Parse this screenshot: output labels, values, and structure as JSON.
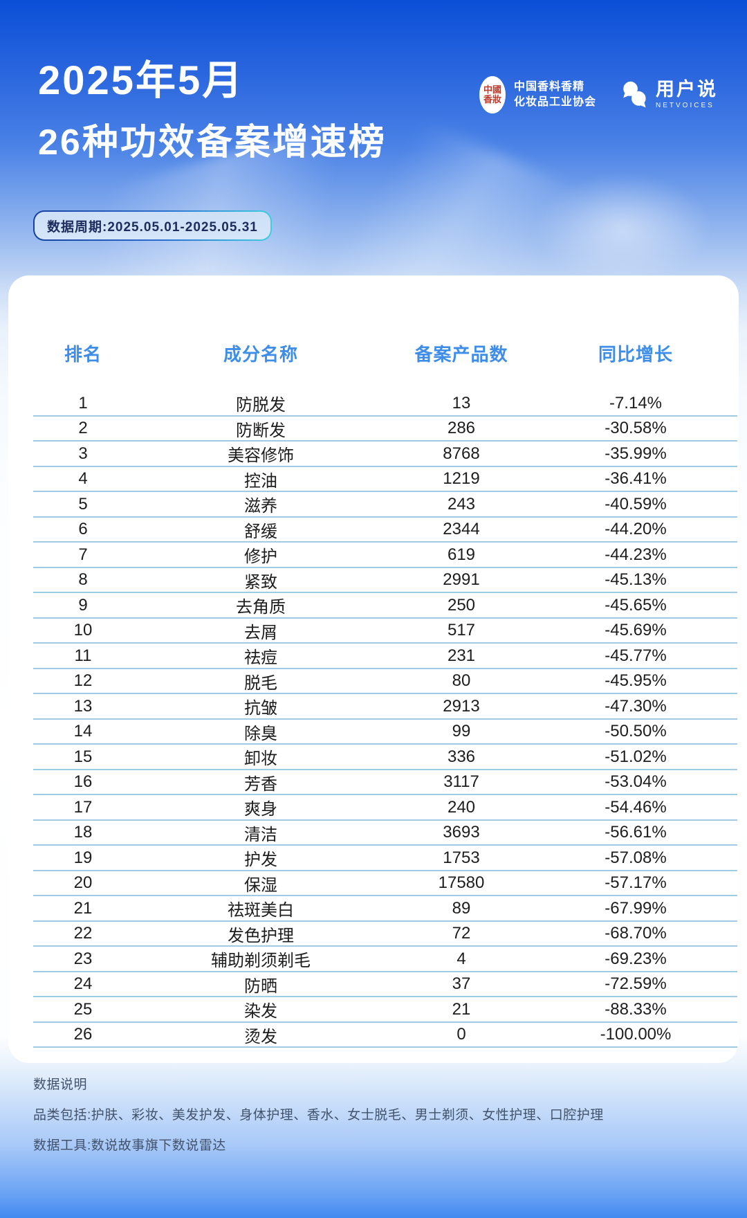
{
  "header": {
    "title_line1": "2025年5月",
    "title_line2": "26种功效备案增速榜",
    "association": {
      "seal_line1": "中國",
      "seal_line2": "香妝",
      "name_line1": "中国香料香精",
      "name_line2": "化妆品工业协会"
    },
    "netvoices": {
      "name": "用户说",
      "subtitle": "NETVOICES",
      "icon": "netvoices-bubbles-icon"
    },
    "period_badge": "数据周期:2025.05.01-2025.05.31"
  },
  "chart_data": {
    "type": "table",
    "title": "2025年5月 26种功效备案增速榜",
    "data_period": "2025.05.01-2025.05.31",
    "columns": [
      "排名",
      "成分名称",
      "备案产品数",
      "同比增长"
    ],
    "rows": [
      [
        "1",
        "防脱发",
        "13",
        "-7.14%"
      ],
      [
        "2",
        "防断发",
        "286",
        "-30.58%"
      ],
      [
        "3",
        "美容修饰",
        "8768",
        "-35.99%"
      ],
      [
        "4",
        "控油",
        "1219",
        "-36.41%"
      ],
      [
        "5",
        "滋养",
        "243",
        "-40.59%"
      ],
      [
        "6",
        "舒缓",
        "2344",
        "-44.20%"
      ],
      [
        "7",
        "修护",
        "619",
        "-44.23%"
      ],
      [
        "8",
        "紧致",
        "2991",
        "-45.13%"
      ],
      [
        "9",
        "去角质",
        "250",
        "-45.65%"
      ],
      [
        "10",
        "去屑",
        "517",
        "-45.69%"
      ],
      [
        "11",
        "祛痘",
        "231",
        "-45.77%"
      ],
      [
        "12",
        "脱毛",
        "80",
        "-45.95%"
      ],
      [
        "13",
        "抗皱",
        "2913",
        "-47.30%"
      ],
      [
        "14",
        "除臭",
        "99",
        "-50.50%"
      ],
      [
        "15",
        "卸妆",
        "336",
        "-51.02%"
      ],
      [
        "16",
        "芳香",
        "3117",
        "-53.04%"
      ],
      [
        "17",
        "爽身",
        "240",
        "-54.46%"
      ],
      [
        "18",
        "清洁",
        "3693",
        "-56.61%"
      ],
      [
        "19",
        "护发",
        "1753",
        "-57.08%"
      ],
      [
        "20",
        "保湿",
        "17580",
        "-57.17%"
      ],
      [
        "21",
        "祛斑美白",
        "89",
        "-67.99%"
      ],
      [
        "22",
        "发色护理",
        "72",
        "-68.70%"
      ],
      [
        "23",
        "辅助剃须剃毛",
        "4",
        "-69.23%"
      ],
      [
        "24",
        "防晒",
        "37",
        "-72.59%"
      ],
      [
        "25",
        "染发",
        "21",
        "-88.33%"
      ],
      [
        "26",
        "烫发",
        "0",
        "-100.00%"
      ]
    ]
  },
  "footer": {
    "title": "数据说明",
    "categories": "品类包括:护肤、彩妆、美发护发、身体护理、香水、女士脱毛、男士剃须、女性护理、口腔护理",
    "tool": "数据工具:数说故事旗下数说雷达"
  },
  "colors": {
    "background_top_blue": "#0b4fd7",
    "background_bottom_blue": "#4289ef",
    "table_header_blue": "#3e8de8",
    "row_divider_blue": "#9fcbe5",
    "badge_border_start": "#17419f",
    "badge_border_end": "#3ecfe2",
    "badge_text_navy": "#1c2c5c",
    "seal_red": "#c0392b",
    "footer_text": "#42526b"
  }
}
